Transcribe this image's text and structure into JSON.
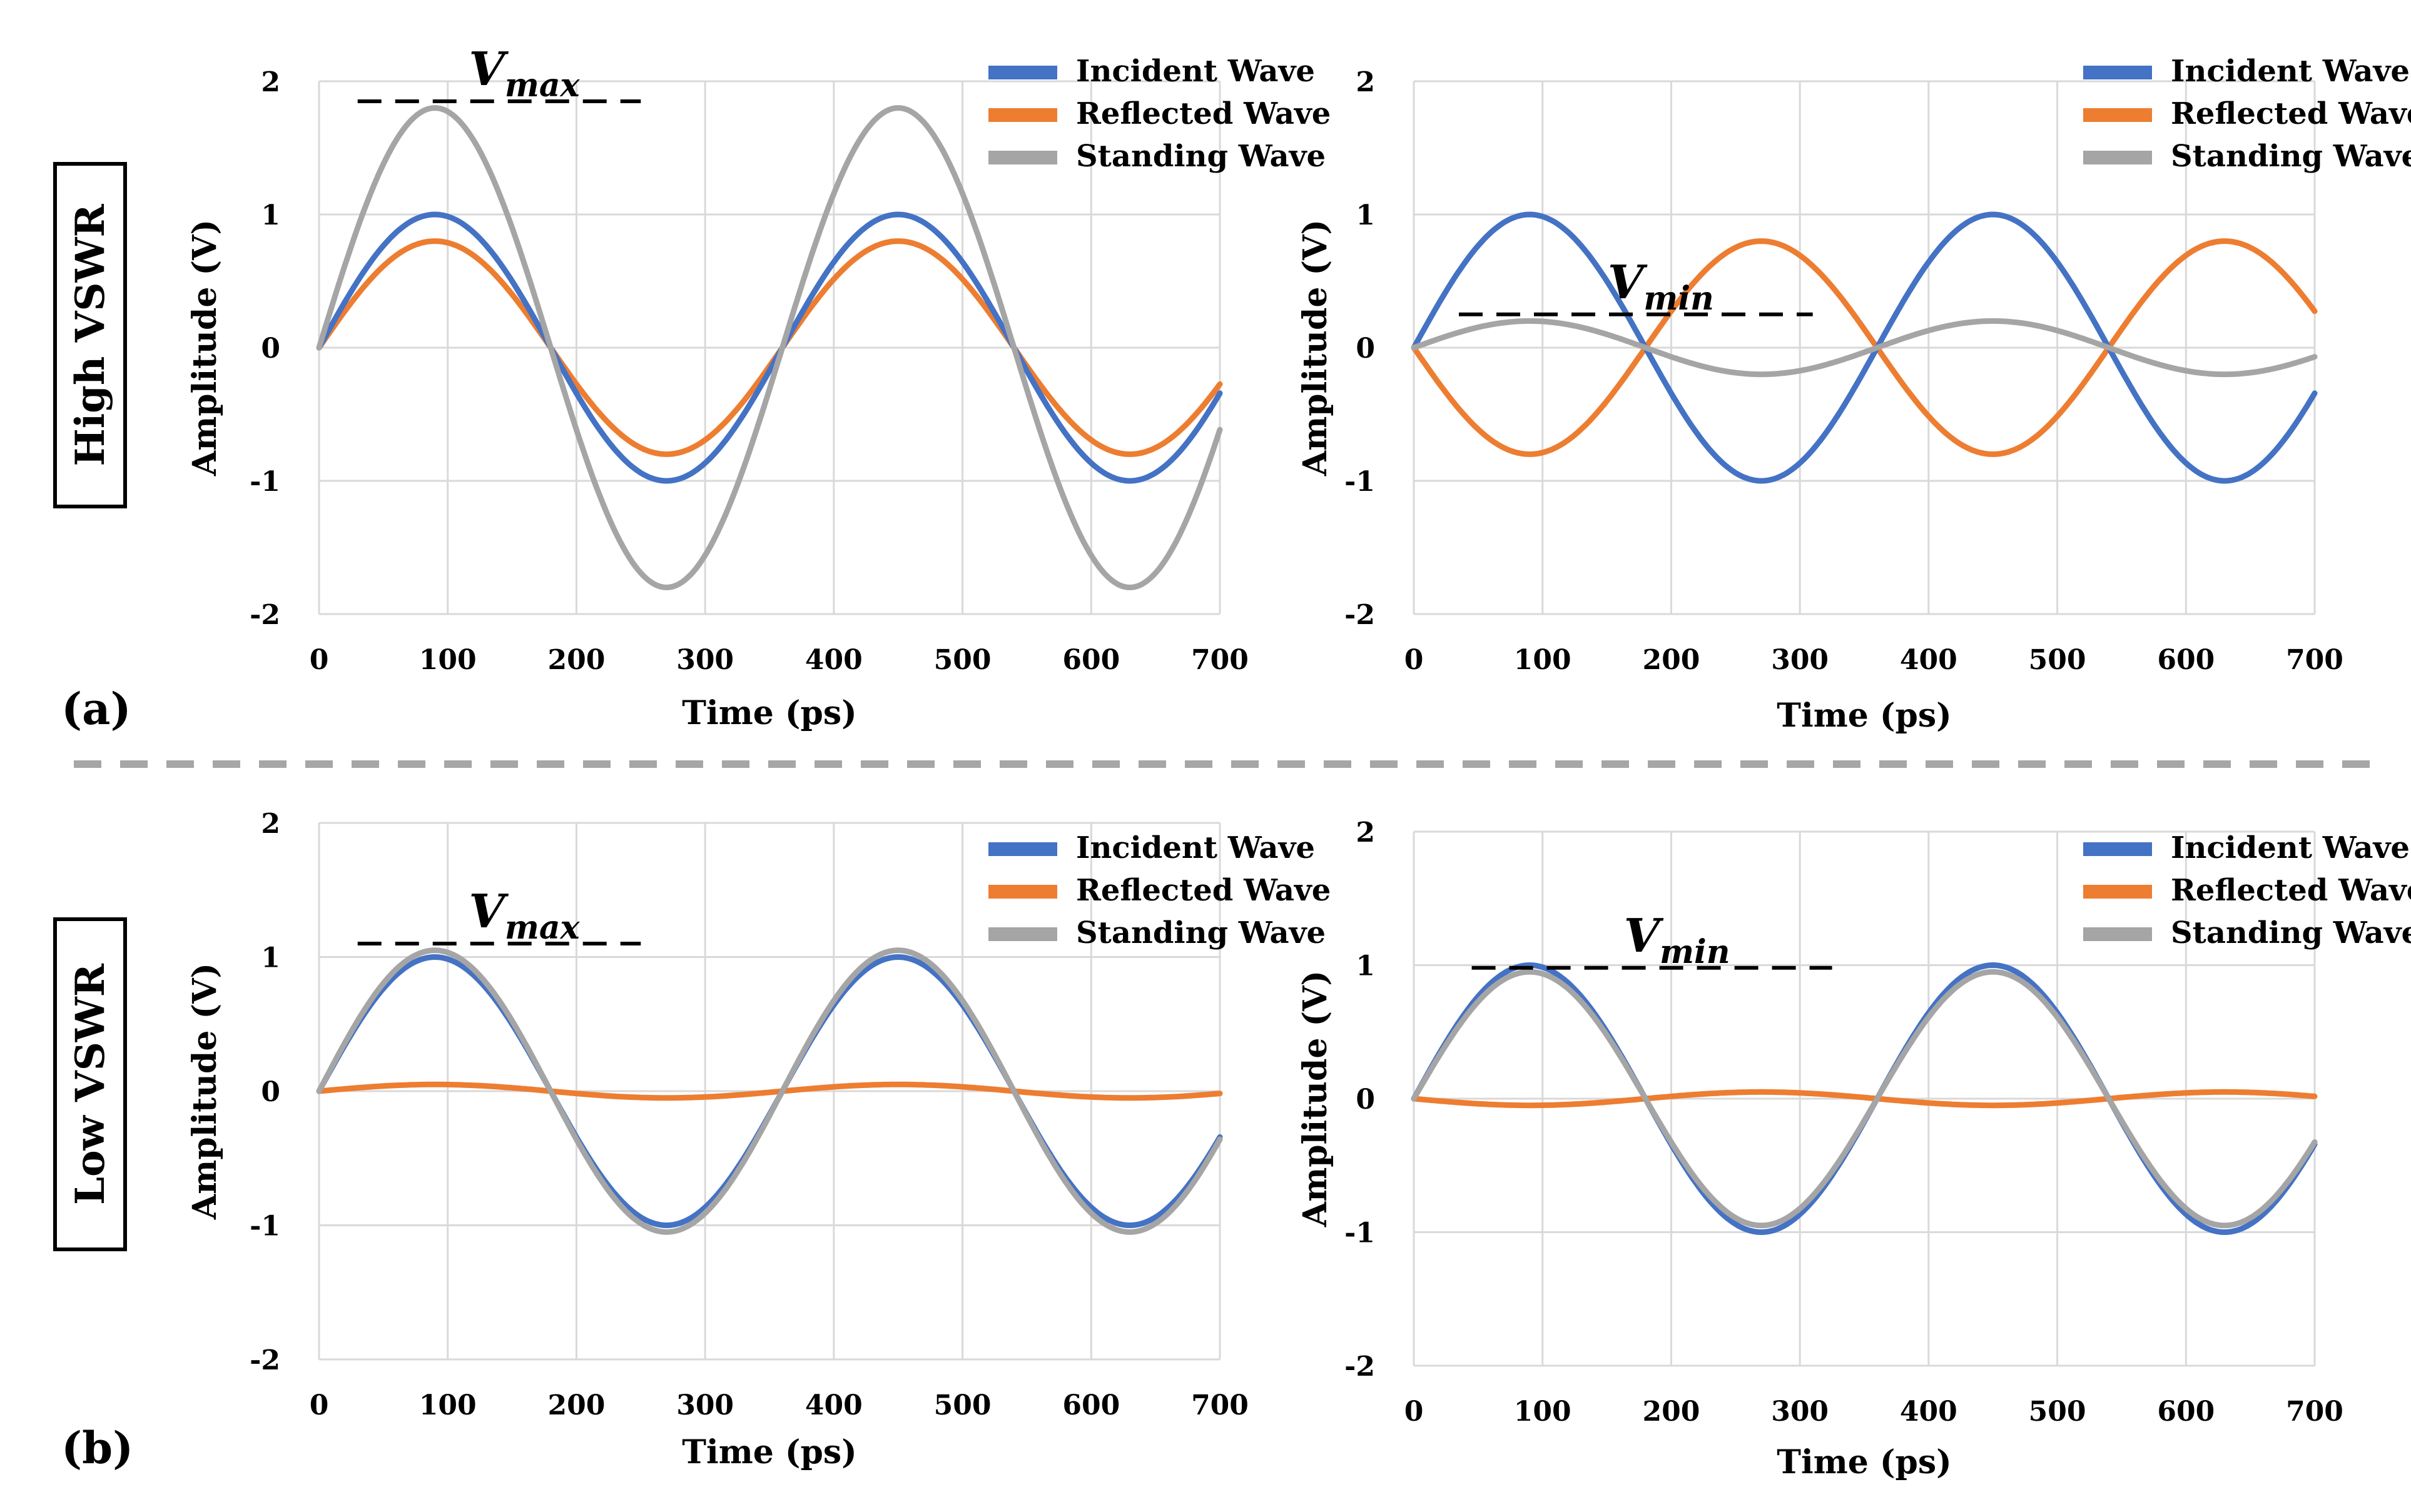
{
  "figure": {
    "row_labels": [
      "High VSWR",
      "Low VSWR"
    ],
    "panel_labels": [
      "(a)",
      "(b)"
    ]
  },
  "colors": {
    "incident": "#4472c4",
    "reflected": "#ed7d31",
    "standing": "#a5a5a5",
    "grid": "#d9d9d9",
    "separator": "#a6a6a6"
  },
  "chart_data": [
    {
      "type": "line",
      "title": "",
      "xlabel": "Time (ps)",
      "ylabel": "Amplitude (V)",
      "xlim": [
        0,
        700
      ],
      "ylim": [
        -2,
        2
      ],
      "xticks": [
        0,
        100,
        200,
        300,
        400,
        500,
        600,
        700
      ],
      "yticks": [
        2,
        1,
        0,
        -1,
        -2
      ],
      "grid": true,
      "legend": "top-right",
      "x": [
        0,
        90,
        180,
        270,
        360,
        450,
        540,
        630,
        700
      ],
      "series": [
        {
          "name": "Incident Wave",
          "period_ps": 360,
          "values": [
            0,
            1.0,
            0,
            -1.0,
            0,
            1.0,
            0,
            -1.0,
            -0.34
          ]
        },
        {
          "name": "Reflected Wave",
          "period_ps": 360,
          "values": [
            0,
            0.8,
            0,
            -0.8,
            0,
            0.8,
            0,
            -0.8,
            -0.27
          ]
        },
        {
          "name": "Standing Wave",
          "period_ps": 360,
          "values": [
            0,
            1.8,
            0,
            -1.8,
            0,
            1.8,
            0,
            -1.8,
            -0.62
          ]
        }
      ],
      "annotation": {
        "label": "V",
        "subscript": "max",
        "value": 1.85,
        "x_range": [
          30,
          250
        ]
      }
    },
    {
      "type": "line",
      "title": "",
      "xlabel": "Time (ps)",
      "ylabel": "Amplitude (V)",
      "xlim": [
        0,
        700
      ],
      "ylim": [
        -2,
        2
      ],
      "xticks": [
        0,
        100,
        200,
        300,
        400,
        500,
        600,
        700
      ],
      "yticks": [
        2,
        1,
        0,
        -1,
        -2
      ],
      "grid": true,
      "legend": "top-right",
      "x": [
        0,
        90,
        180,
        270,
        360,
        450,
        540,
        630,
        700
      ],
      "series": [
        {
          "name": "Incident Wave",
          "period_ps": 360,
          "values": [
            0,
            1.0,
            0,
            -1.0,
            0,
            1.0,
            0,
            -1.0,
            -0.34
          ]
        },
        {
          "name": "Reflected Wave",
          "period_ps": 360,
          "values": [
            0,
            -0.8,
            0,
            0.8,
            0,
            -0.8,
            0,
            0.8,
            0.27
          ]
        },
        {
          "name": "Standing Wave",
          "period_ps": 360,
          "values": [
            0,
            0.2,
            0,
            -0.2,
            0,
            0.2,
            0,
            -0.2,
            -0.07
          ]
        }
      ],
      "annotation": {
        "label": "V",
        "subscript": "min",
        "value": 0.25,
        "x_range": [
          35,
          310
        ]
      }
    },
    {
      "type": "line",
      "title": "",
      "xlabel": "Time (ps)",
      "ylabel": "Amplitude (V)",
      "xlim": [
        0,
        700
      ],
      "ylim": [
        -2,
        2
      ],
      "xticks": [
        0,
        100,
        200,
        300,
        400,
        500,
        600,
        700
      ],
      "yticks": [
        2,
        1,
        0,
        -1,
        -2
      ],
      "grid": true,
      "legend": "top-right",
      "x": [
        0,
        90,
        180,
        270,
        360,
        450,
        540,
        630,
        700
      ],
      "series": [
        {
          "name": "Incident Wave",
          "period_ps": 360,
          "values": [
            0,
            1.0,
            0,
            -1.0,
            0,
            1.0,
            0,
            -1.0,
            -0.34
          ]
        },
        {
          "name": "Reflected Wave",
          "period_ps": 360,
          "values": [
            0,
            0.05,
            0,
            -0.05,
            0,
            0.05,
            0,
            -0.05,
            -0.02
          ]
        },
        {
          "name": "Standing Wave",
          "period_ps": 360,
          "values": [
            0,
            1.05,
            0,
            -1.05,
            0,
            1.05,
            0,
            -1.05,
            -0.36
          ]
        }
      ],
      "annotation": {
        "label": "V",
        "subscript": "max",
        "value": 1.1,
        "x_range": [
          30,
          250
        ]
      }
    },
    {
      "type": "line",
      "title": "",
      "xlabel": "Time (ps)",
      "ylabel": "Amplitude (V)",
      "xlim": [
        0,
        700
      ],
      "ylim": [
        -2,
        2
      ],
      "xticks": [
        0,
        100,
        200,
        300,
        400,
        500,
        600,
        700
      ],
      "yticks": [
        2,
        1,
        0,
        -1,
        -2
      ],
      "grid": true,
      "legend": "top-right",
      "x": [
        0,
        90,
        180,
        270,
        360,
        450,
        540,
        630,
        700
      ],
      "series": [
        {
          "name": "Incident Wave",
          "period_ps": 360,
          "values": [
            0,
            1.0,
            0,
            -1.0,
            0,
            1.0,
            0,
            -1.0,
            -0.34
          ]
        },
        {
          "name": "Reflected Wave",
          "period_ps": 360,
          "values": [
            0,
            -0.05,
            0,
            0.05,
            0,
            -0.05,
            0,
            0.05,
            0.02
          ]
        },
        {
          "name": "Standing Wave",
          "period_ps": 360,
          "values": [
            0,
            0.95,
            0,
            -0.95,
            0,
            0.95,
            0,
            -0.95,
            -0.32
          ]
        }
      ],
      "annotation": {
        "label": "V",
        "subscript": "min",
        "value": 0.98,
        "x_range": [
          45,
          325
        ]
      }
    }
  ]
}
